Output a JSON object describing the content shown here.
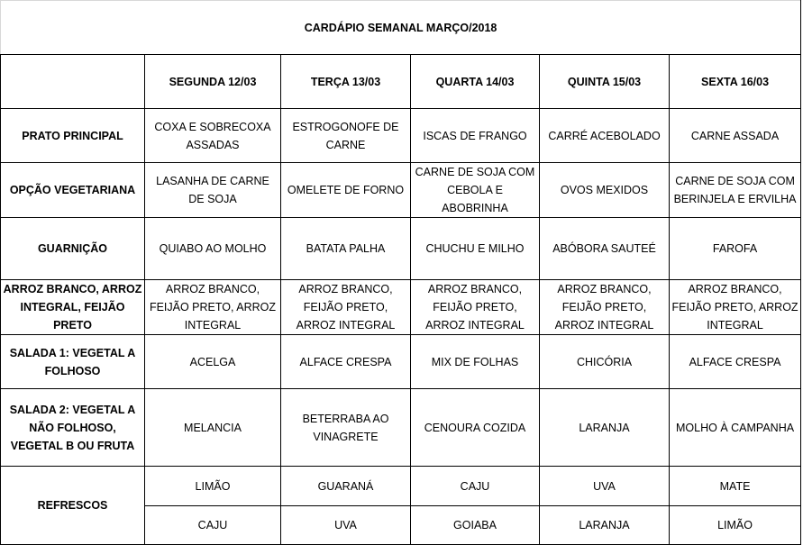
{
  "title": "CARDÁPIO SEMANAL MARÇO/2018",
  "days": [
    "SEGUNDA 12/03",
    "TERÇA 13/03",
    "QUARTA 14/03",
    "QUINTA 15/03",
    "SEXTA 16/03"
  ],
  "rows": [
    {
      "label": "PRATO PRINCIPAL",
      "items": [
        "COXA E SOBRECOXA ASSADAS",
        "ESTROGONOFE DE CARNE",
        "ISCAS DE FRANGO",
        "CARRÉ ACEBOLADO",
        "CARNE ASSADA"
      ]
    },
    {
      "label": "OPÇÃO VEGETARIANA",
      "items": [
        "LASANHA DE CARNE DE SOJA",
        "OMELETE DE FORNO",
        "CARNE DE SOJA COM CEBOLA E ABOBRINHA",
        "OVOS MEXIDOS",
        "CARNE DE SOJA COM BERINJELA E ERVILHA"
      ]
    },
    {
      "label": "GUARNIÇÃO",
      "items": [
        "QUIABO AO MOLHO",
        "BATATA PALHA",
        "CHUCHU E MILHO",
        "ABÓBORA SAUTEÉ",
        "FAROFA"
      ]
    },
    {
      "label": "ARROZ BRANCO, ARROZ INTEGRAL, FEIJÃO PRETO",
      "items": [
        "ARROZ BRANCO, FEIJÃO PRETO, ARROZ INTEGRAL",
        "ARROZ BRANCO, FEIJÃO PRETO, ARROZ INTEGRAL",
        "ARROZ BRANCO, FEIJÃO PRETO, ARROZ INTEGRAL",
        "ARROZ BRANCO, FEIJÃO PRETO, ARROZ INTEGRAL",
        "ARROZ BRANCO, FEIJÃO PRETO, ARROZ INTEGRAL"
      ]
    },
    {
      "label": "SALADA 1: VEGETAL A FOLHOSO",
      "items": [
        "ACELGA",
        "ALFACE CRESPA",
        "MIX DE FOLHAS",
        "CHICÓRIA",
        "ALFACE CRESPA"
      ]
    },
    {
      "label": "SALADA 2: VEGETAL A NÃO FOLHOSO, VEGETAL B OU FRUTA",
      "items": [
        "MELANCIA",
        "BETERRABA AO VINAGRETE",
        "CENOURA COZIDA",
        "LARANJA",
        "MOLHO À CAMPANHA"
      ]
    }
  ],
  "refrescos": {
    "label": "REFRESCOS",
    "first": [
      "LIMÃO",
      "GUARANÁ",
      "CAJU",
      "UVA",
      "MATE"
    ],
    "second": [
      "CAJU",
      "UVA",
      "GOIABA",
      "LARANJA",
      "LIMÃO"
    ]
  }
}
